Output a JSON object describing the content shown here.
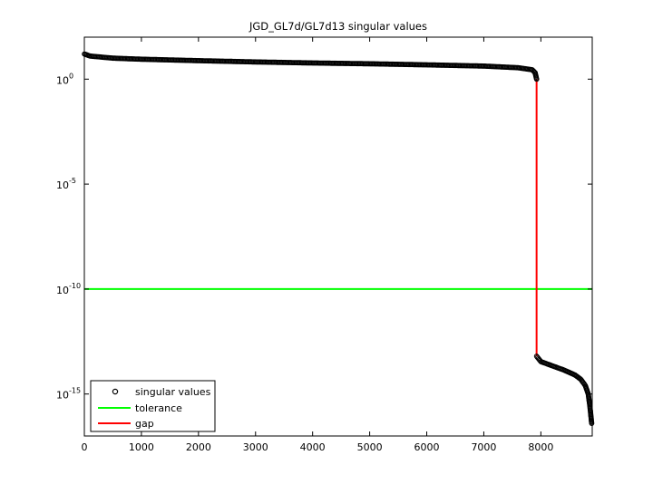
{
  "chart_data": {
    "type": "scatter",
    "title": "JGD_GL7d/GL7d13 singular values",
    "xlim": [
      0,
      8900
    ],
    "y_scale": "log10",
    "ylim": [
      1e-17,
      100.0
    ],
    "x_ticks": [
      0,
      1000,
      2000,
      3000,
      4000,
      5000,
      6000,
      7000,
      8000
    ],
    "x_tick_labels": [
      "0",
      "1000",
      "2000",
      "3000",
      "4000",
      "5000",
      "6000",
      "7000",
      "8000"
    ],
    "y_ticks": [
      1,
      1e-05,
      1e-10,
      1e-15
    ],
    "y_tick_labels": [
      {
        "base": "10",
        "exp": "0"
      },
      {
        "base": "10",
        "exp": "-5"
      },
      {
        "base": "10",
        "exp": "-10"
      },
      {
        "base": "10",
        "exp": "-15"
      }
    ],
    "grid": false,
    "legend_position": "bottom-left",
    "legend": [
      "singular values",
      "tolerance",
      "gap"
    ],
    "series": [
      {
        "name": "singular values",
        "marker": "circle",
        "color": "#000000",
        "segments": [
          [
            [
              1,
              15.8
            ],
            [
              100,
              12.6
            ],
            [
              500,
              10.0
            ],
            [
              1000,
              8.9
            ],
            [
              2000,
              7.6
            ],
            [
              3000,
              6.6
            ],
            [
              4000,
              5.9
            ],
            [
              5000,
              5.4
            ],
            [
              6000,
              4.8
            ],
            [
              7000,
              4.2
            ],
            [
              7600,
              3.5
            ],
            [
              7850,
              2.8
            ],
            [
              7900,
              2.0
            ],
            [
              7925,
              1.0
            ]
          ],
          [
            [
              7926,
              6.3e-14
            ],
            [
              8000,
              3.5e-14
            ],
            [
              8200,
              2.2e-14
            ],
            [
              8400,
              1.4e-14
            ],
            [
              8600,
              8e-15
            ],
            [
              8700,
              5e-15
            ],
            [
              8780,
              2.5e-15
            ],
            [
              8830,
              1e-15
            ],
            [
              8860,
              2.5e-16
            ],
            [
              8875,
              1e-16
            ],
            [
              8890,
              4e-17
            ]
          ]
        ]
      },
      {
        "name": "tolerance",
        "color": "#00ff00",
        "y": 1e-10
      },
      {
        "name": "gap",
        "color": "#ff0000",
        "x": 7925,
        "y_range": [
          6.3e-14,
          1.0
        ]
      }
    ]
  }
}
